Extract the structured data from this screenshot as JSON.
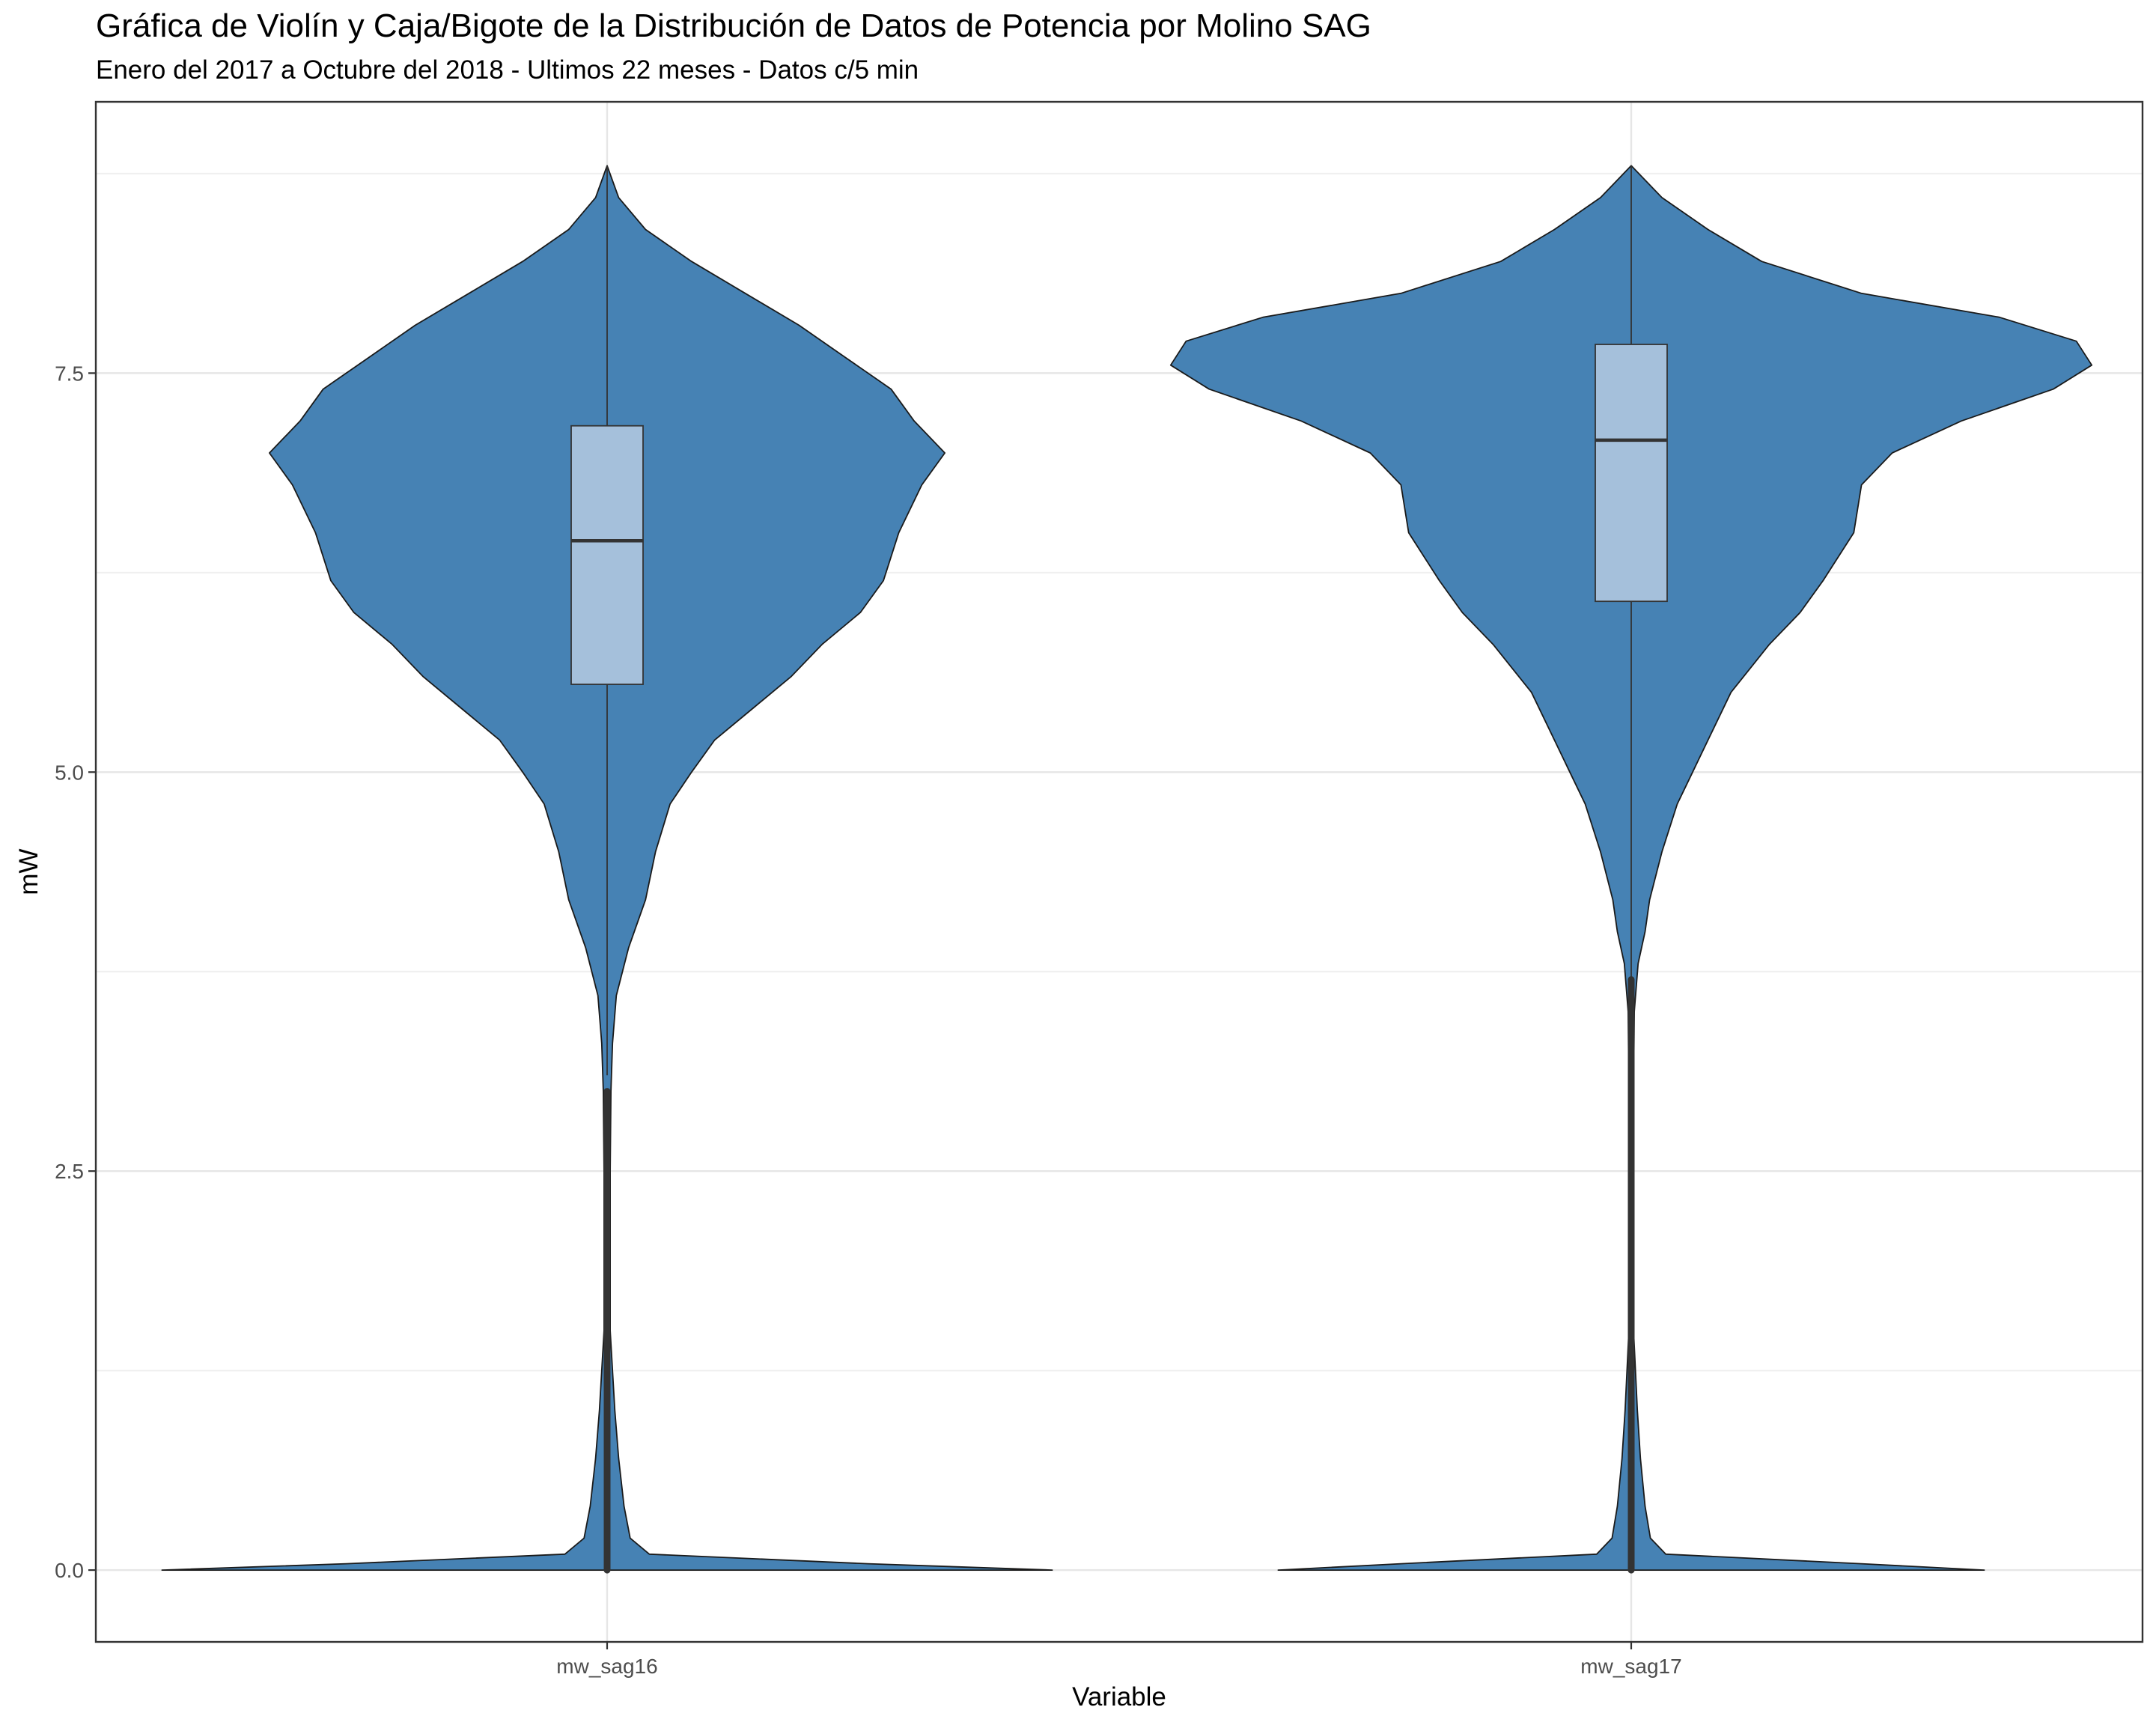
{
  "chart_data": {
    "type": "violin",
    "title": "Gráfica de Violín y Caja/Bigote de la Distribución de Datos de Potencia por Molino SAG",
    "subtitle": "Enero del 2017 a Octubre del 2018 - Ultimos 22 meses - Datos c/5 min",
    "xlabel": "Variable",
    "ylabel": "mW",
    "categories": [
      "mw_sag16",
      "mw_sag17"
    ],
    "ylim": [
      -0.45,
      9.2
    ],
    "y_ticks": [
      0.0,
      2.5,
      5.0,
      7.5
    ],
    "y_tick_labels": [
      "0.0",
      "2.5",
      "5.0",
      "7.5"
    ],
    "grid": true,
    "violin_color": "#4682B4",
    "box_color": "#A5C0DB",
    "series": [
      {
        "category": "mw_sag16",
        "box": {
          "q1": 5.55,
          "median": 6.45,
          "q3": 7.17,
          "whisker_low": 3.1,
          "whisker_high": 8.8
        },
        "outliers_range": [
          0.0,
          3.0
        ],
        "density": [
          [
            0.0,
            0.58
          ],
          [
            0.04,
            0.34
          ],
          [
            0.1,
            0.055
          ],
          [
            0.2,
            0.03
          ],
          [
            0.4,
            0.022
          ],
          [
            0.7,
            0.015
          ],
          [
            1.0,
            0.01
          ],
          [
            1.5,
            0.004
          ],
          [
            2.0,
            0.004
          ],
          [
            2.5,
            0.004
          ],
          [
            3.0,
            0.005
          ],
          [
            3.3,
            0.007
          ],
          [
            3.6,
            0.012
          ],
          [
            3.9,
            0.028
          ],
          [
            4.2,
            0.05
          ],
          [
            4.5,
            0.063
          ],
          [
            4.8,
            0.082
          ],
          [
            5.0,
            0.11
          ],
          [
            5.2,
            0.14
          ],
          [
            5.4,
            0.19
          ],
          [
            5.6,
            0.24
          ],
          [
            5.8,
            0.28
          ],
          [
            6.0,
            0.33
          ],
          [
            6.2,
            0.36
          ],
          [
            6.5,
            0.38
          ],
          [
            6.8,
            0.41
          ],
          [
            7.0,
            0.44
          ],
          [
            7.2,
            0.4
          ],
          [
            7.4,
            0.37
          ],
          [
            7.6,
            0.31
          ],
          [
            7.8,
            0.25
          ],
          [
            8.0,
            0.18
          ],
          [
            8.2,
            0.11
          ],
          [
            8.4,
            0.05
          ],
          [
            8.6,
            0.015
          ],
          [
            8.8,
            0.0
          ]
        ]
      },
      {
        "category": "mw_sag17",
        "box": {
          "q1": 6.07,
          "median": 7.08,
          "q3": 7.68,
          "whisker_low": 3.7,
          "whisker_high": 8.8
        },
        "outliers_range": [
          0.0,
          3.7
        ],
        "density": [
          [
            0.0,
            0.46
          ],
          [
            0.04,
            0.3
          ],
          [
            0.1,
            0.045
          ],
          [
            0.2,
            0.025
          ],
          [
            0.4,
            0.018
          ],
          [
            0.7,
            0.012
          ],
          [
            1.0,
            0.008
          ],
          [
            1.5,
            0.003
          ],
          [
            2.0,
            0.003
          ],
          [
            2.5,
            0.003
          ],
          [
            3.0,
            0.003
          ],
          [
            3.5,
            0.004
          ],
          [
            3.8,
            0.009
          ],
          [
            4.0,
            0.018
          ],
          [
            4.2,
            0.024
          ],
          [
            4.5,
            0.04
          ],
          [
            4.8,
            0.06
          ],
          [
            5.0,
            0.08
          ],
          [
            5.2,
            0.1
          ],
          [
            5.5,
            0.13
          ],
          [
            5.8,
            0.18
          ],
          [
            6.0,
            0.22
          ],
          [
            6.2,
            0.25
          ],
          [
            6.5,
            0.29
          ],
          [
            6.8,
            0.3
          ],
          [
            7.0,
            0.34
          ],
          [
            7.2,
            0.43
          ],
          [
            7.4,
            0.55
          ],
          [
            7.55,
            0.6
          ],
          [
            7.7,
            0.58
          ],
          [
            7.85,
            0.48
          ],
          [
            8.0,
            0.3
          ],
          [
            8.2,
            0.17
          ],
          [
            8.4,
            0.1
          ],
          [
            8.6,
            0.04
          ],
          [
            8.8,
            0.0
          ]
        ]
      }
    ]
  }
}
